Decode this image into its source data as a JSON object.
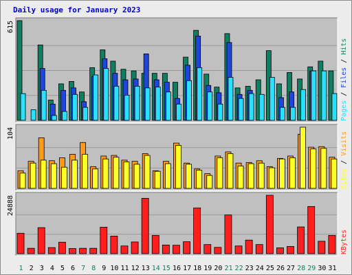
{
  "colors": {
    "background": "#ececec",
    "plot_bg": "#c0c0c0",
    "hits": "#117e62",
    "files": "#1e46dc",
    "pages": "#29e0ff",
    "visits": "#ff9a18",
    "sites": "#ffff2a",
    "kbytes": "#ff1e1e",
    "title": "#0000c8",
    "weekend": "#117e62"
  },
  "chart_data": {
    "type": "bar",
    "title": "Daily usage for January 2023",
    "categories": [
      "1",
      "2",
      "3",
      "4",
      "5",
      "6",
      "7",
      "8",
      "9",
      "10",
      "11",
      "12",
      "13",
      "14",
      "15",
      "16",
      "17",
      "18",
      "19",
      "20",
      "21",
      "22",
      "23",
      "24",
      "25",
      "26",
      "27",
      "28",
      "29",
      "30",
      "31"
    ],
    "weekend_days": [
      "1",
      "7",
      "8",
      "14",
      "15",
      "21",
      "22",
      "28",
      "29"
    ],
    "panels": [
      {
        "name": "pages-files-hits",
        "ymax_label": "615",
        "ylim": [
          0,
          615
        ],
        "side_labels": [
          "Pages",
          "Files",
          "Hits"
        ],
        "series": [
          {
            "name": "Hits",
            "values": [
              615,
              0,
              465,
              125,
              225,
              240,
              175,
              325,
              435,
              365,
              315,
              305,
              290,
              290,
              290,
              235,
              390,
              555,
              285,
              205,
              535,
              200,
              210,
              250,
              430,
              225,
              295,
              255,
              330,
              365,
              305
            ]
          },
          {
            "name": "Files",
            "values": [
              0,
              0,
              320,
              100,
              185,
              200,
              115,
              270,
              380,
              290,
              250,
              255,
              410,
              250,
              235,
              135,
              340,
              520,
              215,
              170,
              480,
              160,
              185,
              0,
              0,
              140,
              175,
              0,
              305,
              0,
              0
            ]
          },
          {
            "name": "Pages",
            "values": [
              165,
              65,
              185,
              30,
              55,
              160,
              80,
              280,
              320,
              210,
              155,
              210,
              200,
              205,
              175,
              100,
              245,
              325,
              175,
              100,
              265,
              135,
              165,
              160,
              265,
              80,
              80,
              190,
              305,
              305,
              165
            ]
          }
        ]
      },
      {
        "name": "sites-visits",
        "ymax_label": "104",
        "ylim": [
          0,
          104
        ],
        "side_labels": [
          "Sites",
          "Visits"
        ],
        "series": [
          {
            "name": "Visits",
            "values": [
              30,
              46,
              86,
              47,
              52,
              58,
              78,
              37,
              55,
              56,
              48,
              46,
              59,
              30,
              46,
              77,
              43,
              33,
              25,
              55,
              62,
              43,
              44,
              47,
              37,
              51,
              55,
              92,
              70,
              71,
              53
            ]
          },
          {
            "name": "Sites",
            "values": [
              26,
              43,
              48,
              42,
              36,
              48,
              58,
              33,
              50,
              53,
              45,
              41,
              56,
              29,
              42,
              73,
              41,
              31,
              22,
              52,
              59,
              38,
              42,
              43,
              35,
              50,
              52,
              104,
              67,
              68,
              50
            ]
          }
        ]
      },
      {
        "name": "kbytes",
        "ymax_label": "24888",
        "ylim": [
          0,
          24888
        ],
        "side_labels": [
          "KBytes"
        ],
        "series": [
          {
            "name": "KBytes",
            "values": [
              8700,
              2300,
              11100,
              2600,
              4900,
              2200,
              2300,
              2300,
              11300,
              7500,
              3300,
              5000,
              23600,
              7800,
              3700,
              3600,
              5100,
              19500,
              3900,
              2700,
              16500,
              3300,
              5800,
              3900,
              24888,
              2500,
              3100,
              11400,
              20100,
              5300,
              7800
            ]
          }
        ]
      }
    ]
  }
}
